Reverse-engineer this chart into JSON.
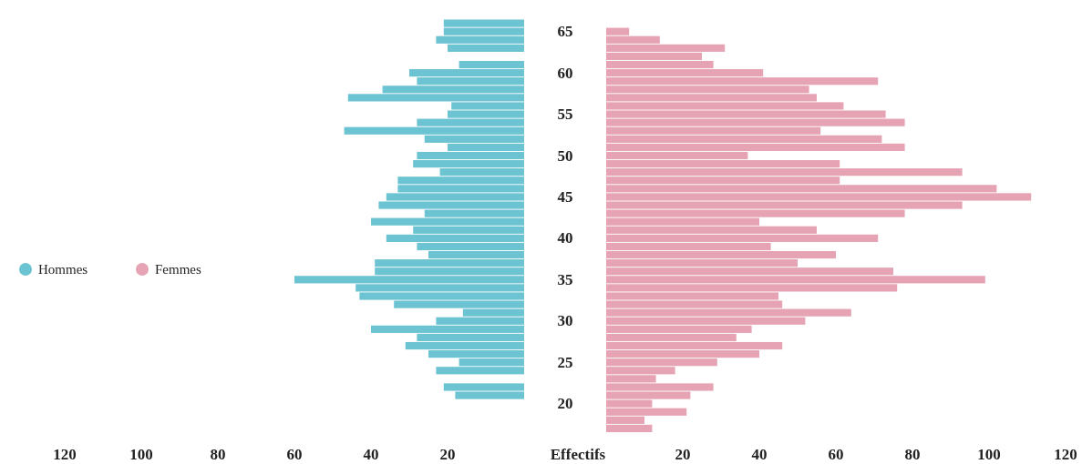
{
  "chart_data": [
    {
      "type": "bar",
      "orientation": "horizontal",
      "legend": "left",
      "categories": [
        null,
        "65",
        null,
        null,
        null,
        null,
        "60",
        null,
        null,
        null,
        null,
        "55",
        null,
        null,
        null,
        null,
        "50",
        null,
        null,
        null,
        null,
        "45",
        null,
        null,
        null,
        null,
        "40",
        null,
        null,
        null,
        null,
        "35",
        null,
        null,
        null,
        null,
        "30",
        null,
        null,
        null,
        null,
        "25",
        null,
        null,
        null,
        null,
        "20",
        null,
        null,
        null
      ],
      "xlim": [
        120,
        0
      ],
      "xticks": [
        120,
        100,
        80,
        60,
        40,
        20
      ],
      "series": [
        {
          "name": "Hommes",
          "color": "#6cc3d1",
          "values": [
            21,
            21,
            23,
            20,
            null,
            17,
            30,
            28,
            37,
            46,
            19,
            20,
            28,
            47,
            26,
            20,
            28,
            29,
            22,
            33,
            33,
            36,
            38,
            26,
            40,
            29,
            36,
            28,
            25,
            39,
            39,
            60,
            44,
            43,
            34,
            16,
            23,
            40,
            28,
            31,
            25,
            17,
            23,
            null,
            21,
            18,
            null,
            null,
            null,
            null
          ]
        }
      ]
    },
    {
      "type": "bar",
      "orientation": "horizontal",
      "legend": "left",
      "xlabel": "Effectifs",
      "tick_labels": "x",
      "categories": [
        null,
        null,
        null,
        null,
        null,
        null,
        null,
        null,
        null,
        null,
        null,
        null,
        null,
        null,
        null,
        null,
        null,
        null,
        null,
        null,
        null,
        null,
        null,
        null,
        null,
        null,
        null,
        null,
        null,
        null,
        null,
        null,
        null,
        null,
        null,
        null,
        null,
        null,
        null,
        null,
        null,
        null,
        null,
        null,
        null,
        null,
        null,
        null,
        null
      ],
      "xlim": [
        0,
        120
      ],
      "xticks": [
        20,
        40,
        60,
        80,
        100,
        120
      ],
      "series": [
        {
          "name": "Femmes",
          "color": "#e5a3b4",
          "values": [
            6,
            14,
            31,
            25,
            28,
            41,
            71,
            53,
            55,
            62,
            73,
            78,
            56,
            72,
            78,
            37,
            61,
            93,
            61,
            102,
            111,
            93,
            78,
            40,
            55,
            71,
            43,
            60,
            50,
            75,
            99,
            76,
            45,
            46,
            64,
            52,
            38,
            34,
            46,
            40,
            29,
            18,
            13,
            28,
            22,
            12,
            21,
            10,
            12
          ]
        }
      ]
    }
  ]
}
